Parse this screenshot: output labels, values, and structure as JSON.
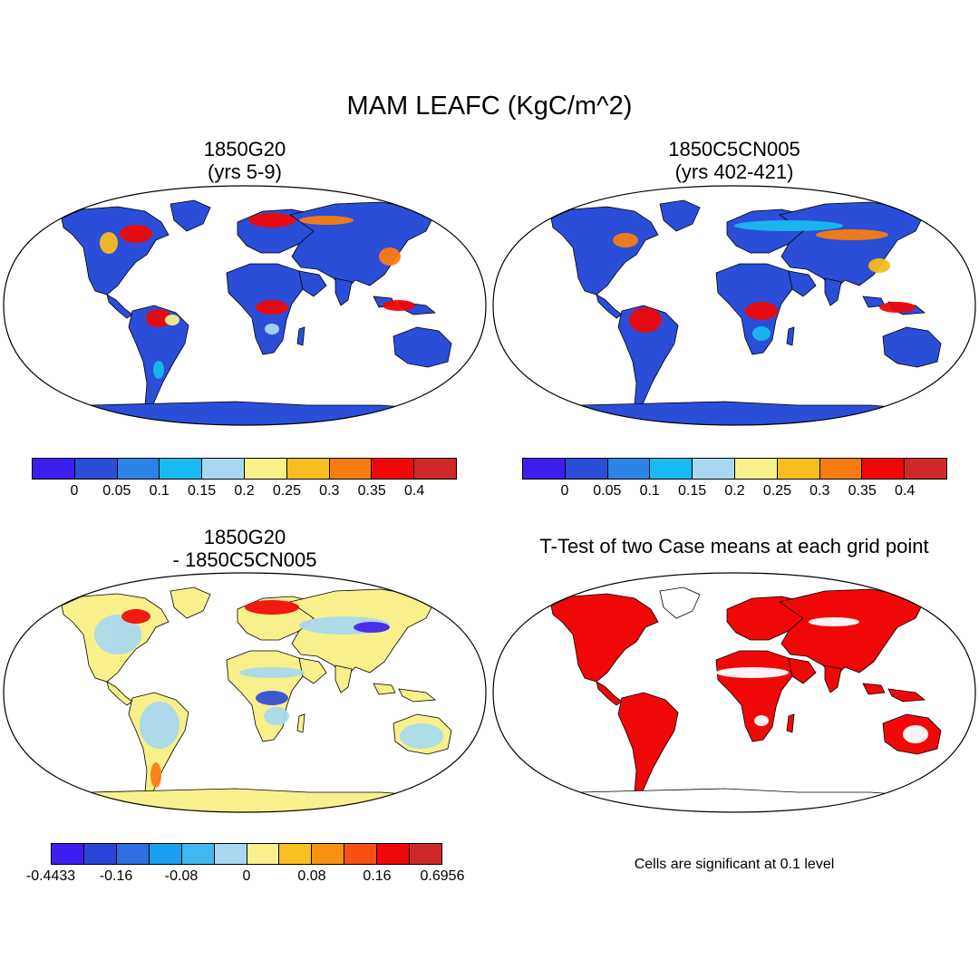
{
  "figure": {
    "title": "MAM LEAFC (KgC/m^2)",
    "panels": [
      {
        "title_line1": "1850G20",
        "title_line2": "(yrs 5-9)"
      },
      {
        "title_line1": "1850C5CN005",
        "title_line2": "(yrs 402-421)"
      },
      {
        "title_line1": "1850G20",
        "title_line2": "- 1850C5CN005"
      },
      {
        "title_line1": "T-Test of two Case means at each grid point"
      }
    ],
    "note": "Cells are significant at 0.1 level"
  },
  "colorbars": {
    "absolute": {
      "colors": [
        "#3c1ef0",
        "#2b4ed9",
        "#2b83e8",
        "#18b8f0",
        "#a8d8f0",
        "#f8f08a",
        "#f8bd20",
        "#f87d10",
        "#f00808",
        "#d02828"
      ],
      "labels": [
        "0",
        "0.05",
        "0.1",
        "0.15",
        "0.2",
        "0.25",
        "0.3",
        "0.35",
        "0.4"
      ]
    },
    "difference": {
      "colors": [
        "#3c1ef0",
        "#2b45d8",
        "#2b6fe0",
        "#189ff0",
        "#40b8f0",
        "#a8d8f0",
        "#f8f08a",
        "#f8c020",
        "#f89010",
        "#f85010",
        "#f00808",
        "#d02828"
      ],
      "labels": [
        "-0.4433",
        "-0.16",
        "-0.08",
        "0",
        "0.08",
        "0.16",
        "0.6956"
      ]
    }
  },
  "map_colors": {
    "ocean": "#ffffff",
    "land_low": "#2b4ed9",
    "land_diff": "#f8f08a",
    "significant": "#f00808",
    "outline": "#000000"
  }
}
